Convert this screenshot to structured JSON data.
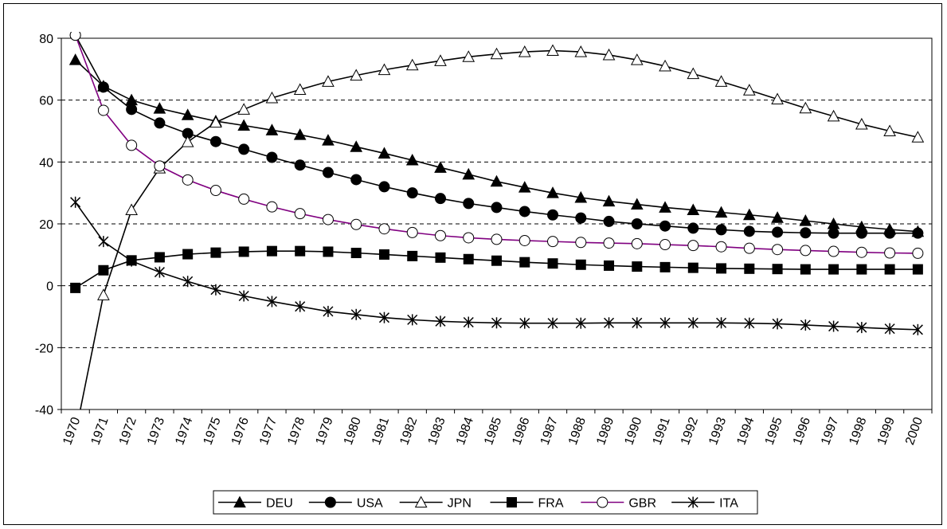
{
  "chart_data": {
    "type": "line",
    "title": "",
    "xlabel": "",
    "ylabel": "",
    "ylim": [
      -40,
      80
    ],
    "y_ticks": [
      "80",
      "60",
      "40",
      "20",
      "0",
      "-20",
      "-40"
    ],
    "y_tick_values": [
      80,
      60,
      40,
      20,
      0,
      -20,
      -40
    ],
    "grid": "horizontal dashed",
    "legend_position": "bottom",
    "categories": [
      "1970",
      "1971",
      "1972",
      "1973",
      "1974",
      "1975",
      "1976",
      "1977",
      "1978",
      "1979",
      "1980",
      "1981",
      "1982",
      "1983",
      "1984",
      "1985",
      "1986",
      "1987",
      "1988",
      "1989",
      "1990",
      "1991",
      "1992",
      "1993",
      "1994",
      "1995",
      "1996",
      "1997",
      "1998",
      "1999",
      "2000"
    ],
    "series": [
      {
        "name": "DEU",
        "marker": "triangle-filled",
        "color": "#000000",
        "values": [
          73,
          64.5,
          60,
          57.3,
          55.2,
          53.2,
          51.8,
          50.3,
          48.8,
          47,
          44.9,
          42.8,
          40.6,
          38.2,
          36,
          33.7,
          31.8,
          30,
          28.5,
          27.3,
          26.3,
          25.3,
          24.5,
          23.7,
          22.9,
          22,
          21,
          20,
          19,
          18.2,
          17.5
        ]
      },
      {
        "name": "USA",
        "marker": "circle-filled",
        "color": "#000000",
        "values": [
          81,
          64.2,
          57,
          52.6,
          49.2,
          46.6,
          44.1,
          41.5,
          39,
          36.6,
          34.3,
          32,
          30,
          28.2,
          26.6,
          25.3,
          24,
          22.9,
          21.9,
          20.8,
          20,
          19.3,
          18.6,
          18.1,
          17.6,
          17.3,
          17.1,
          17,
          17,
          17,
          17
        ]
      },
      {
        "name": "JPN",
        "marker": "triangle-open",
        "color": "#000000",
        "values": [
          -48,
          -3,
          24.5,
          38,
          46.5,
          52.8,
          57,
          60.7,
          63.4,
          66,
          68,
          69.8,
          71.3,
          72.7,
          74,
          74.9,
          75.6,
          76,
          75.6,
          74.6,
          73,
          71,
          68.5,
          66,
          63.2,
          60.3,
          57.4,
          54.8,
          52.2,
          50,
          48
        ]
      },
      {
        "name": "FRA",
        "marker": "square-filled",
        "color": "#000000",
        "values": [
          -0.7,
          5,
          8.2,
          9.2,
          10.2,
          10.7,
          11,
          11.2,
          11.2,
          11,
          10.6,
          10.1,
          9.6,
          9.1,
          8.6,
          8.1,
          7.6,
          7.2,
          6.8,
          6.5,
          6.2,
          6,
          5.8,
          5.6,
          5.5,
          5.4,
          5.3,
          5.3,
          5.3,
          5.3,
          5.3
        ]
      },
      {
        "name": "GBR",
        "marker": "circle-open",
        "color": "#800080",
        "values": [
          81,
          56.7,
          45.4,
          38.7,
          34.2,
          30.8,
          28,
          25.5,
          23.3,
          21.4,
          19.8,
          18.4,
          17.2,
          16.2,
          15.5,
          15,
          14.6,
          14.3,
          14,
          13.8,
          13.6,
          13.3,
          13,
          12.6,
          12.1,
          11.7,
          11.4,
          11.1,
          10.8,
          10.6,
          10.5
        ]
      },
      {
        "name": "ITA",
        "marker": "star",
        "color": "#000000",
        "values": [
          27,
          14.3,
          8,
          4.4,
          1.4,
          -1.3,
          -3.3,
          -5.1,
          -6.7,
          -8.3,
          -9.3,
          -10.3,
          -11,
          -11.5,
          -11.8,
          -12,
          -12.1,
          -12.1,
          -12.1,
          -12,
          -12,
          -12,
          -12,
          -12,
          -12.1,
          -12.3,
          -12.7,
          -13.1,
          -13.5,
          -13.9,
          -14.2
        ]
      }
    ]
  }
}
